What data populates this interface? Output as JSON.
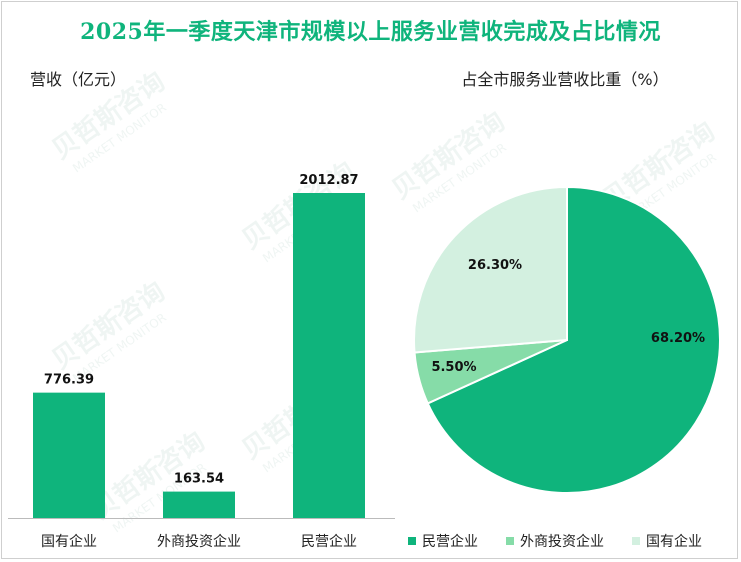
{
  "title": "2025年一季度天津市规模以上服务业营收完成及占比情况",
  "watermark": {
    "cn": "贝哲斯咨询",
    "en": "MARKET MONITOR"
  },
  "colors": {
    "title": "#0fb47c",
    "bar": "#0fb47c",
    "pie": [
      "#0fb47c",
      "#86dca8",
      "#d3f0e0"
    ]
  },
  "chart_data": [
    {
      "type": "bar",
      "ylabel": "营收（亿元）",
      "categories": [
        "国有企业",
        "外商投资企业",
        "民营企业"
      ],
      "values": [
        776.39,
        163.54,
        2012.87
      ],
      "value_labels": [
        "776.39",
        "163.54",
        "2012.87"
      ],
      "ylim": [
        0,
        2012.87
      ],
      "grid": false,
      "legend": "none"
    },
    {
      "type": "pie",
      "title": "占全市服务业营收比重（%）",
      "labels": [
        "民营企业",
        "外商投资企业",
        "国有企业"
      ],
      "values": [
        68.2,
        5.5,
        26.3
      ],
      "value_labels": [
        "68.20%",
        "5.50%",
        "26.30%"
      ],
      "legend": "bottom"
    }
  ]
}
